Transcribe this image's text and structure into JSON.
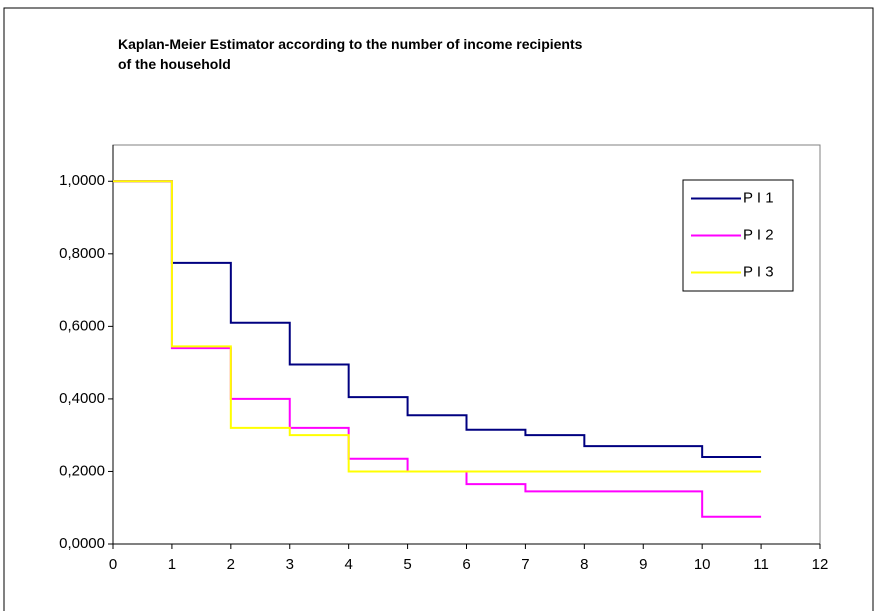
{
  "chart_data": {
    "type": "step",
    "title": "Kaplan-Meier Estimator according to the number of income recipients of the household",
    "x": [
      0,
      1,
      2,
      3,
      4,
      5,
      6,
      7,
      8,
      9,
      10,
      11
    ],
    "series": [
      {
        "name": "P I 1",
        "color": "#000080",
        "values": [
          1.0,
          0.775,
          0.61,
          0.495,
          0.405,
          0.355,
          0.315,
          0.3,
          0.27,
          0.27,
          0.24,
          0.24
        ]
      },
      {
        "name": "P I 2",
        "color": "#ff00ff",
        "values": [
          1.0,
          0.54,
          0.4,
          0.32,
          0.235,
          0.2,
          0.165,
          0.145,
          0.145,
          0.145,
          0.075,
          0.075
        ]
      },
      {
        "name": "P I 3",
        "color": "#ffff00",
        "values": [
          1.0,
          0.545,
          0.32,
          0.3,
          0.2,
          0.2,
          0.2,
          0.2,
          0.2,
          0.2,
          0.2,
          0.2
        ]
      }
    ],
    "xlim": [
      0,
      12
    ],
    "xticks": [
      0,
      1,
      2,
      3,
      4,
      5,
      6,
      7,
      8,
      9,
      10,
      11,
      12
    ],
    "ylim": [
      0,
      1.1
    ],
    "yticks": [
      {
        "value": 0,
        "label": "0,0000"
      },
      {
        "value": 0.2,
        "label": "0,2000"
      },
      {
        "value": 0.4,
        "label": "0,4000"
      },
      {
        "value": 0.6,
        "label": "0,6000"
      },
      {
        "value": 0.8,
        "label": "0,8000"
      },
      {
        "value": 1.0,
        "label": "1,0000"
      }
    ],
    "grid": false,
    "legend": "upper right"
  }
}
